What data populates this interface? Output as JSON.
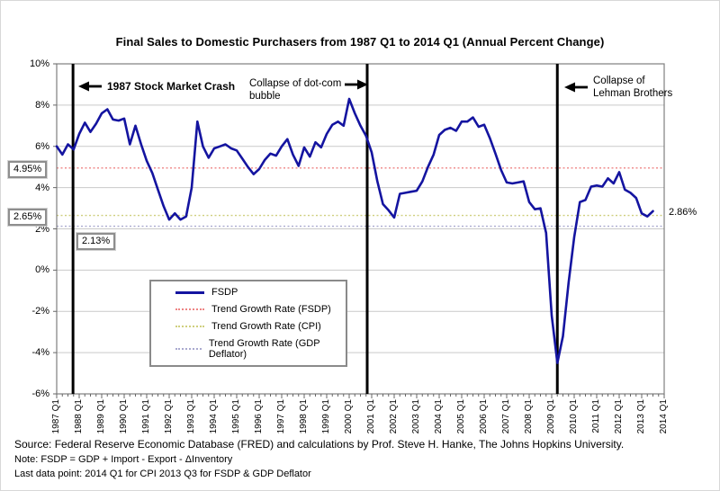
{
  "title": "Final Sales to Domestic Purchasers from 1987 Q1 to 2014 Q1 (Annual Percent Change)",
  "labels": {
    "fsdp_trend_value": "4.95%",
    "cpi_trend_value": "2.65%",
    "gdp_deflator_trend_value": "2.13%",
    "series_end_value": "2.86%"
  },
  "annotations": {
    "crash_1987": {
      "text": "1987 Stock Market Crash"
    },
    "dotcom": {
      "line1": "Collapse of dot-com",
      "line2": "bubble"
    },
    "lehman": {
      "line1": "Collapse of",
      "line2": "Lehman Brothers"
    }
  },
  "legend": {
    "items": [
      {
        "label": "FSDP"
      },
      {
        "label": "Trend Growth Rate (FSDP)"
      },
      {
        "label": "Trend Growth Rate (CPI)"
      },
      {
        "label": "Trend Growth Rate (GDP Deflator)"
      }
    ]
  },
  "footer": {
    "source": "Source: Federal Reserve Economic Database (FRED) and calculations by Prof. Steve H. Hanke, The Johns Hopkins University.",
    "note": "Note: FSDP = GDP + Import - Export - ΔInventory",
    "last_data_point": "Last data point: 2014 Q1 for CPI 2013 Q3 for FSDP & GDP Deflator"
  },
  "chart_data": {
    "type": "line",
    "title": "Final Sales to Domestic Purchasers from 1987 Q1 to 2014 Q1 (Annual Percent Change)",
    "xlabel": "",
    "ylabel": "",
    "ylim": [
      -6,
      10
    ],
    "grid": "horizontal",
    "legend_position": "inside-lower-left",
    "y_ticks": [
      {
        "value": 10,
        "label": "10%"
      },
      {
        "value": 8,
        "label": "8%"
      },
      {
        "value": 6,
        "label": "6%"
      },
      {
        "value": 4,
        "label": "4%"
      },
      {
        "value": 2,
        "label": "2%"
      },
      {
        "value": 0,
        "label": "0%"
      },
      {
        "value": -2,
        "label": "-2%"
      },
      {
        "value": -4,
        "label": "-4%"
      },
      {
        "value": -6,
        "label": "-6%"
      }
    ],
    "x_tick_labels": [
      "1987 Q1",
      "1988 Q1",
      "1989 Q1",
      "1990 Q1",
      "1991 Q1",
      "1992 Q1",
      "1993 Q1",
      "1994 Q1",
      "1995 Q1",
      "1996 Q1",
      "1997 Q1",
      "1998 Q1",
      "1999 Q1",
      "2000 Q1",
      "2001 Q1",
      "2002 Q1",
      "2003 Q1",
      "2004 Q1",
      "2005 Q1",
      "2006 Q1",
      "2007 Q1",
      "2008 Q1",
      "2009 Q1",
      "2010 Q1",
      "2011 Q1",
      "2012 Q1",
      "2013 Q1",
      "2014 Q1"
    ],
    "x_total_quarters": 108,
    "series": [
      {
        "name": "FSDP",
        "color": "#1414a0",
        "frequency": "quarterly",
        "start": "1987 Q1",
        "end": "2013 Q3",
        "values": [
          6.0,
          5.6,
          6.1,
          5.85,
          6.6,
          7.15,
          6.7,
          7.1,
          7.6,
          7.8,
          7.3,
          7.25,
          7.35,
          6.1,
          7.0,
          6.1,
          5.3,
          4.7,
          3.9,
          3.1,
          2.45,
          2.75,
          2.45,
          2.6,
          4.0,
          7.2,
          6.0,
          5.45,
          5.9,
          6.0,
          6.1,
          5.9,
          5.8,
          5.4,
          5.0,
          4.65,
          4.9,
          5.35,
          5.65,
          5.55,
          6.0,
          6.35,
          5.6,
          5.05,
          5.95,
          5.5,
          6.2,
          5.95,
          6.6,
          7.05,
          7.2,
          7.0,
          8.3,
          7.6,
          7.0,
          6.5,
          5.7,
          4.3,
          3.2,
          2.9,
          2.55,
          3.7,
          3.75,
          3.8,
          3.85,
          4.3,
          5.0,
          5.6,
          6.55,
          6.8,
          6.9,
          6.75,
          7.2,
          7.2,
          7.4,
          6.95,
          7.05,
          6.4,
          5.65,
          4.85,
          4.25,
          4.2,
          4.25,
          4.3,
          3.3,
          2.95,
          3.0,
          1.8,
          -2.2,
          -4.5,
          -3.2,
          -0.6,
          1.6,
          3.3,
          3.4,
          4.05,
          4.1,
          4.05,
          4.45,
          4.2,
          4.75,
          3.9,
          3.75,
          3.5,
          2.75,
          2.6,
          2.86
        ]
      }
    ],
    "trend_lines": [
      {
        "name": "Trend Growth Rate (FSDP)",
        "value": 4.95,
        "color": "#ee8484"
      },
      {
        "name": "Trend Growth Rate (CPI)",
        "value": 2.65,
        "color": "#cfcf7e"
      },
      {
        "name": "Trend Growth Rate (GDP Deflator)",
        "value": 2.13,
        "color": "#a9a9cf"
      }
    ],
    "event_lines": [
      {
        "label": "1987 Stock Market Crash",
        "quarter_index": 2.9
      },
      {
        "label": "Collapse of dot-com bubble",
        "quarter_index": 55.2
      },
      {
        "label": "Collapse of Lehman Brothers",
        "quarter_index": 89.0
      }
    ],
    "end_label": {
      "text": "2.86%",
      "value": 2.86
    },
    "colors": {
      "grid": "#c9c9c9",
      "border": "#7f7f7f",
      "event_line": "#000000"
    }
  }
}
